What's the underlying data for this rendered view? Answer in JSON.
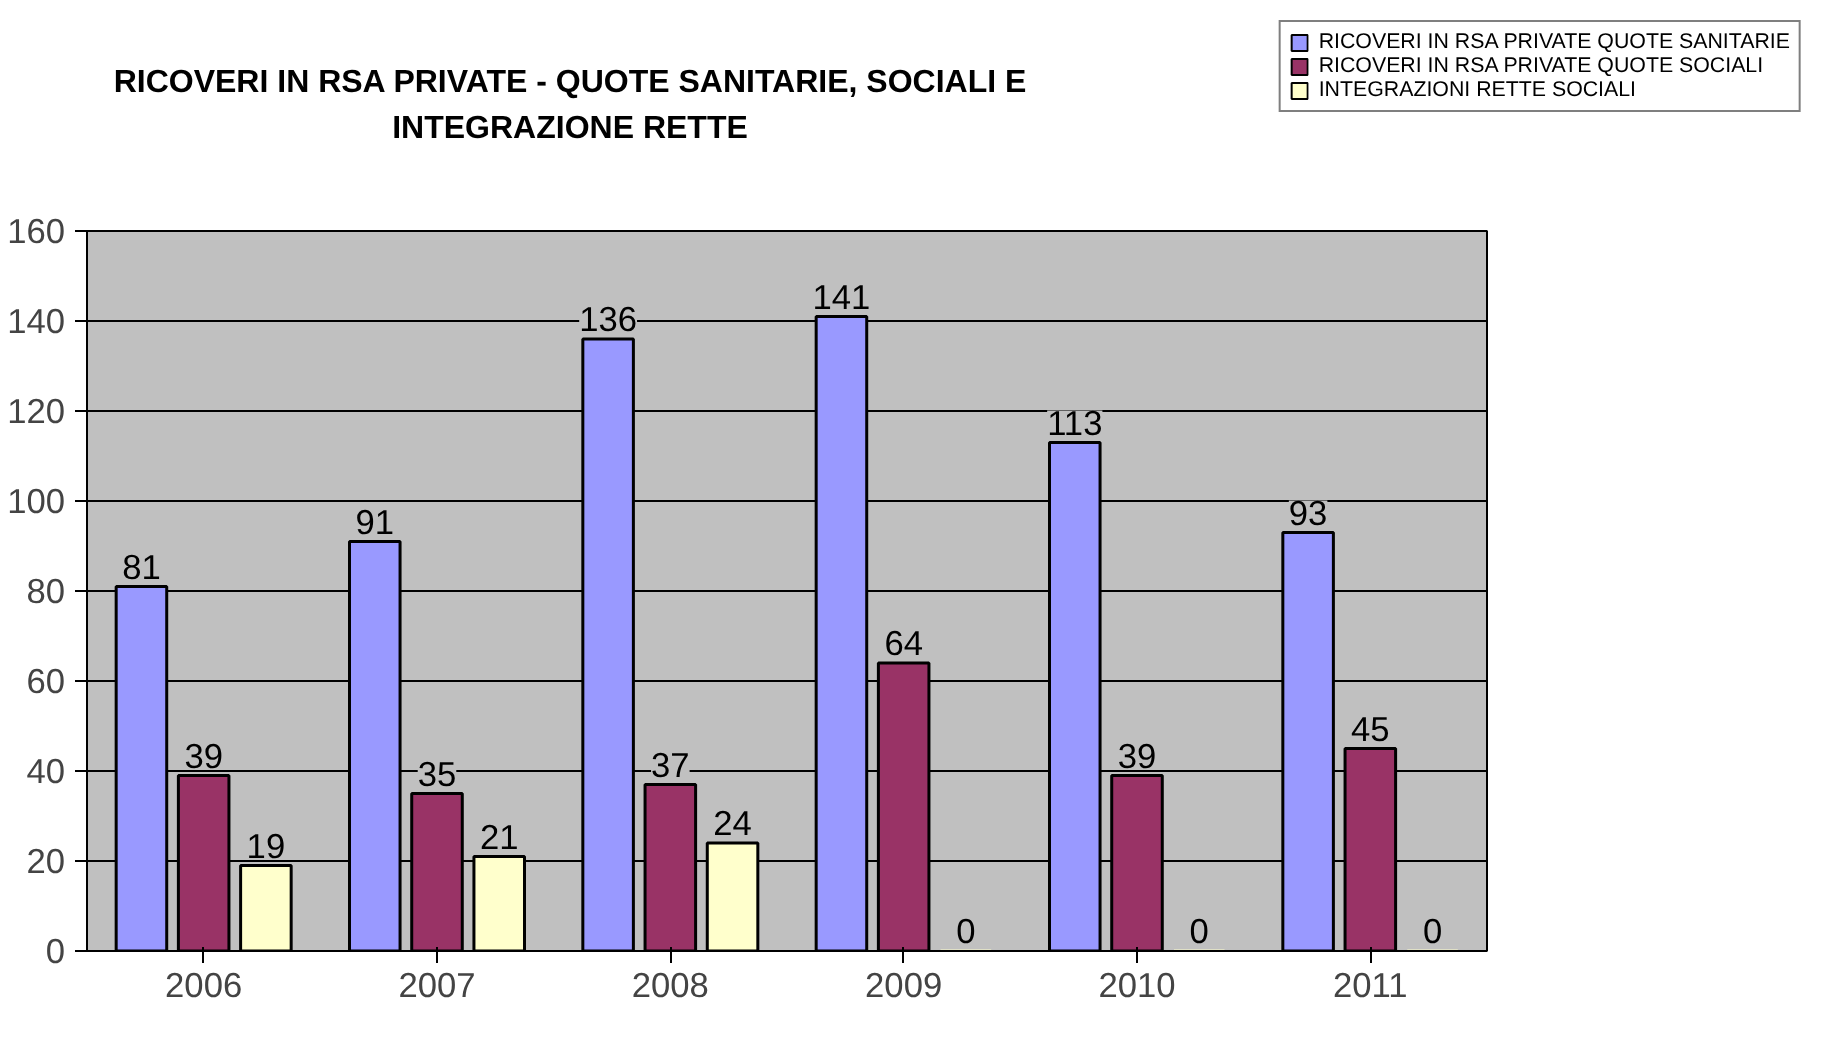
{
  "chart_data": {
    "type": "bar",
    "title": "RICOVERI IN RSA PRIVATE - QUOTE SANITARIE, SOCIALI E INTEGRAZIONE RETTE",
    "categories": [
      "2006",
      "2007",
      "2008",
      "2009",
      "2010",
      "2011"
    ],
    "series": [
      {
        "name": "RICOVERI IN RSA PRIVATE QUOTE SANITARIE",
        "color": "#9999ff",
        "values": [
          81,
          91,
          136,
          141,
          113,
          93
        ]
      },
      {
        "name": "RICOVERI IN RSA PRIVATE QUOTE SOCIALI",
        "color": "#993366",
        "values": [
          39,
          35,
          37,
          64,
          39,
          45
        ]
      },
      {
        "name": "INTEGRAZIONI RETTE SOCIALI",
        "color": "#ffffcc",
        "values": [
          19,
          21,
          24,
          0,
          0,
          0
        ]
      }
    ],
    "ylim": [
      0,
      160
    ],
    "yticks": [
      0,
      20,
      40,
      60,
      80,
      100,
      120,
      140,
      160
    ],
    "grid": "y",
    "legend": "top right",
    "data_labels": true
  }
}
